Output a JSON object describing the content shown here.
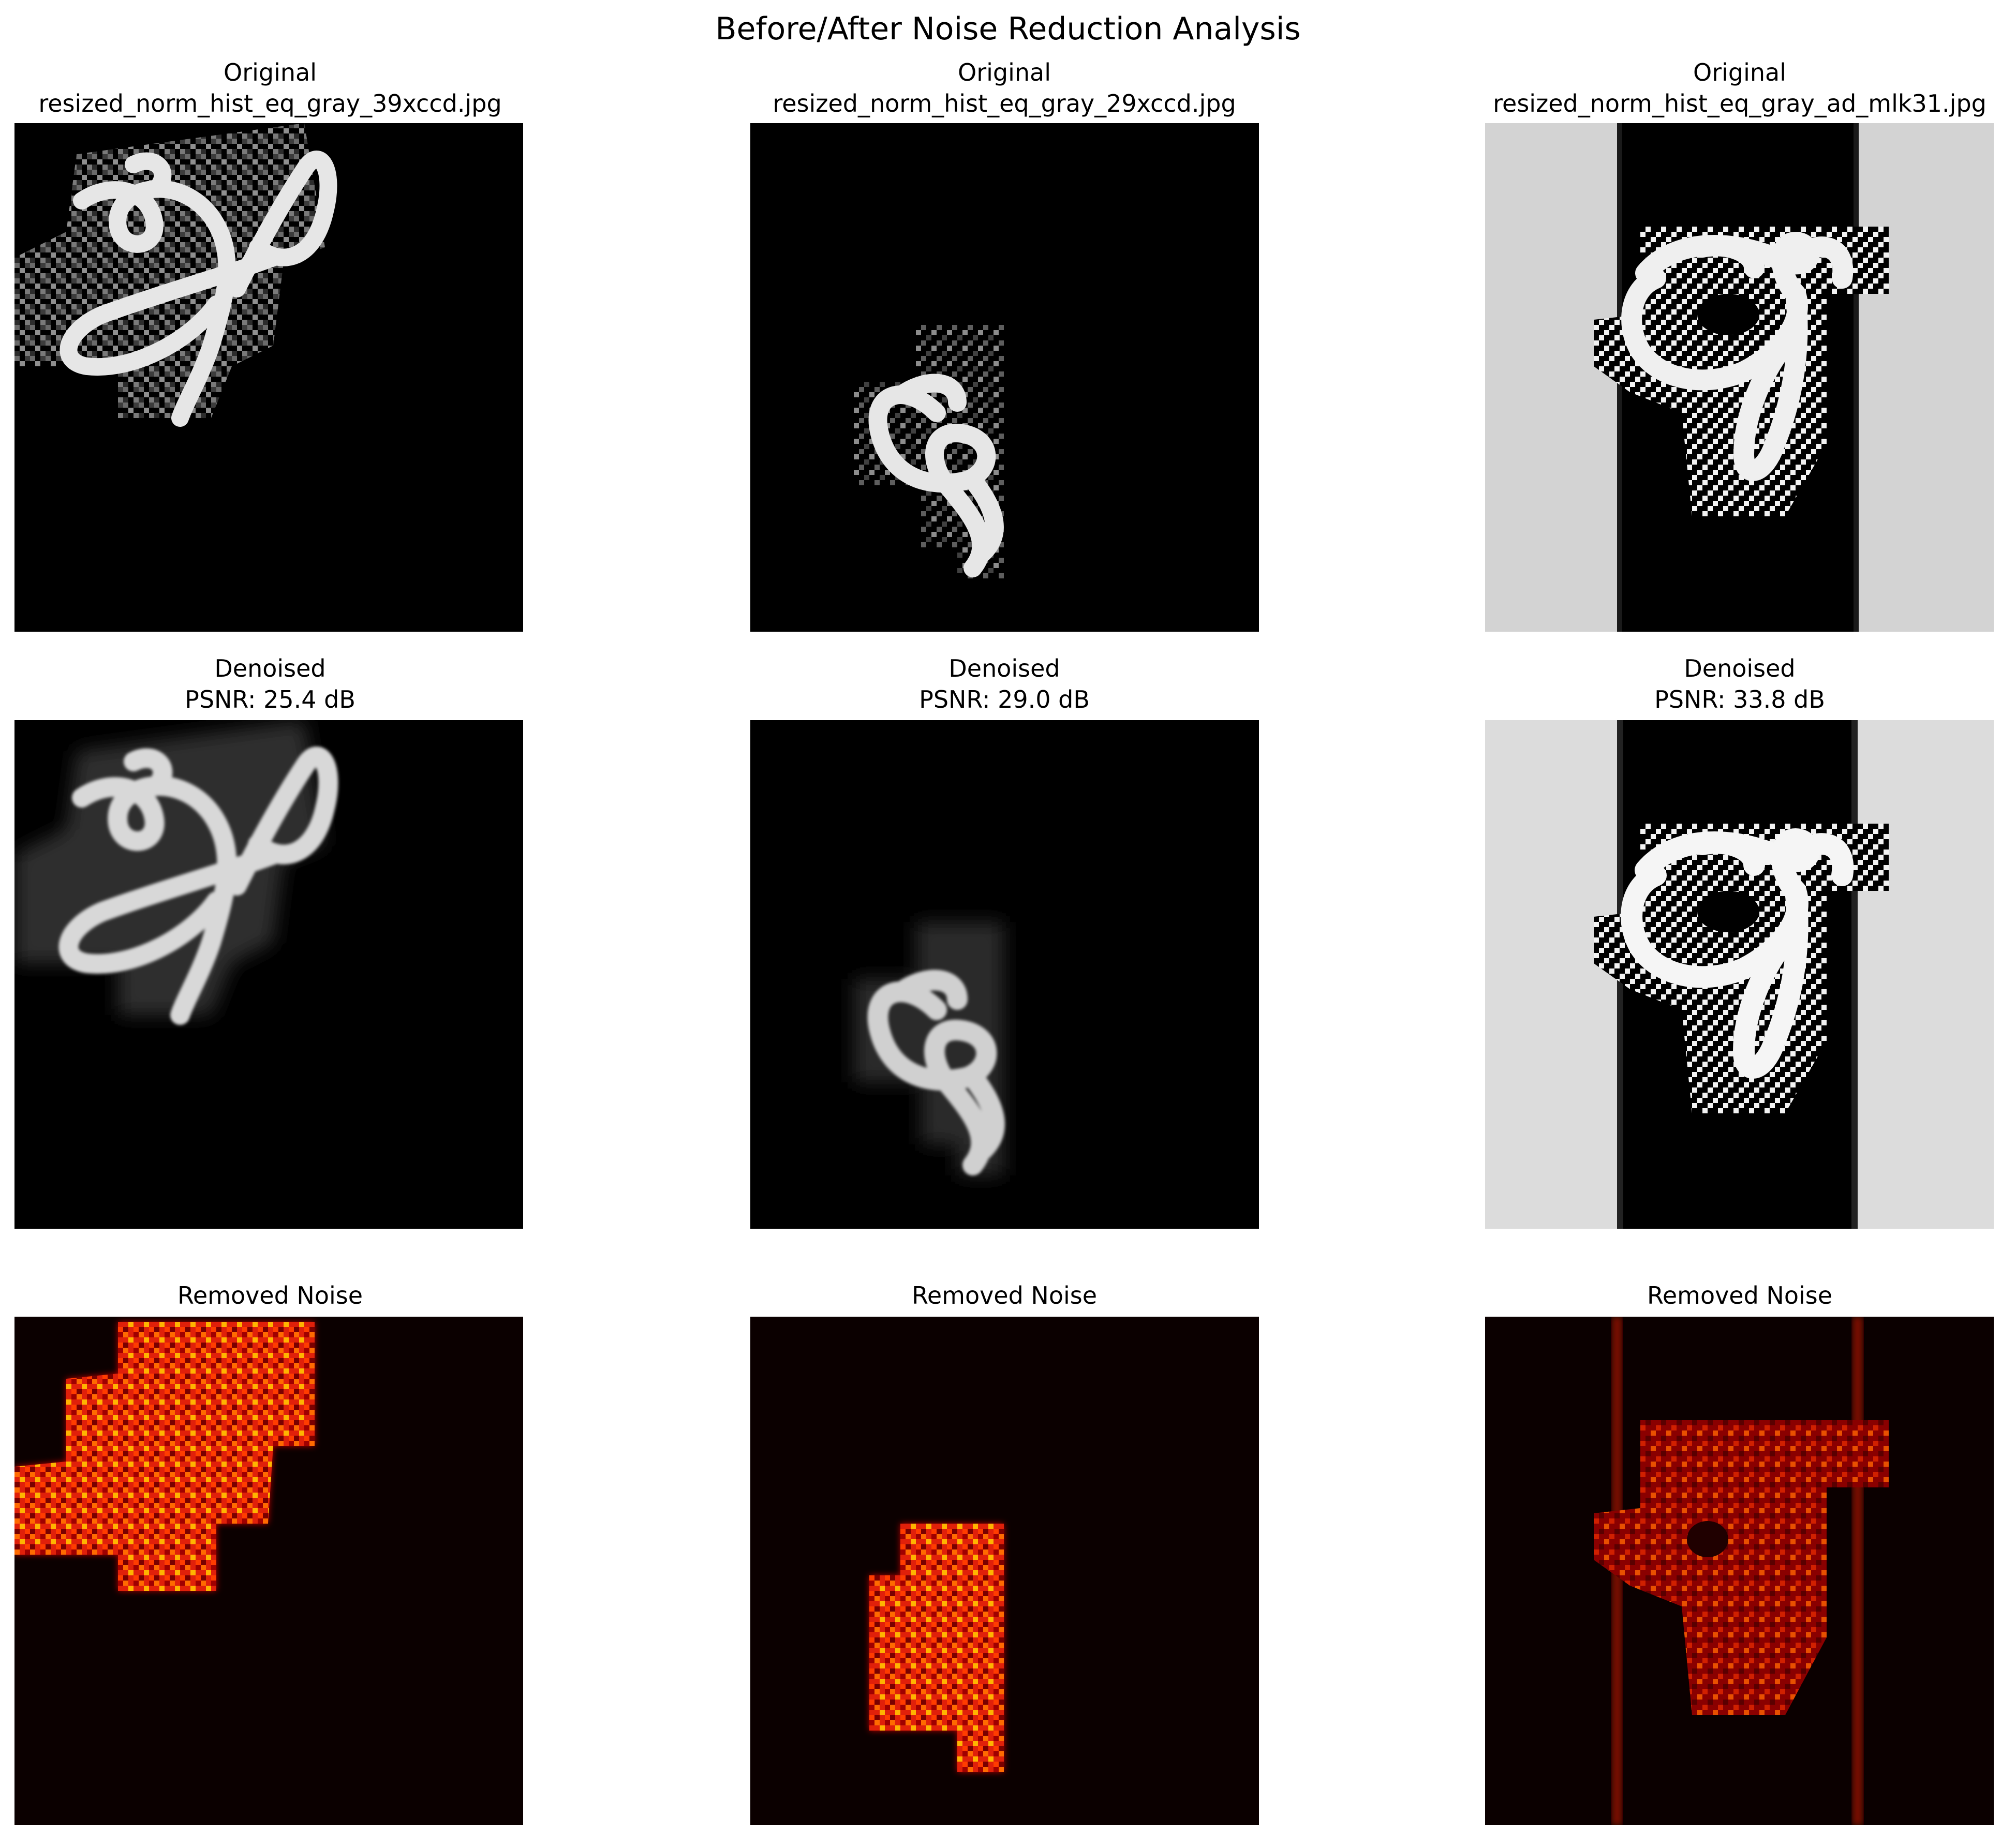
{
  "figure": {
    "title": "Before/After Noise Reduction Analysis"
  },
  "panels": [
    {
      "row": "original",
      "label": "Original",
      "subtitle": "resized_norm_hist_eq_gray_39xccd.jpg",
      "colormap": "gray"
    },
    {
      "row": "original",
      "label": "Original",
      "subtitle": "resized_norm_hist_eq_gray_29xccd.jpg",
      "colormap": "gray"
    },
    {
      "row": "original",
      "label": "Original",
      "subtitle": "resized_norm_hist_eq_gray_ad_mlk31.jpg",
      "colormap": "gray"
    },
    {
      "row": "denoised",
      "label": "Denoised",
      "subtitle": "PSNR: 25.4 dB",
      "psnr_db": 25.4,
      "colormap": "gray"
    },
    {
      "row": "denoised",
      "label": "Denoised",
      "subtitle": "PSNR: 29.0 dB",
      "psnr_db": 29.0,
      "colormap": "gray"
    },
    {
      "row": "denoised",
      "label": "Denoised",
      "subtitle": "PSNR: 33.8 dB",
      "psnr_db": 33.8,
      "colormap": "gray"
    },
    {
      "row": "noise",
      "label": "Removed Noise",
      "colormap": "hot"
    },
    {
      "row": "noise",
      "label": "Removed Noise",
      "colormap": "hot"
    },
    {
      "row": "noise",
      "label": "Removed Noise",
      "colormap": "hot"
    }
  ]
}
